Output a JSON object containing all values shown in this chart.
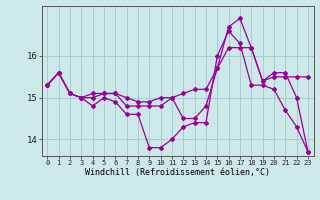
{
  "title": "",
  "xlabel": "Windchill (Refroidissement éolien,°C)",
  "ylabel": "",
  "background_color": "#cce8e8",
  "grid_color": "#aacccc",
  "line_color": "#990099",
  "ylim": [
    13.6,
    17.2
  ],
  "xlim": [
    -0.5,
    23.5
  ],
  "yticks": [
    14,
    15,
    16
  ],
  "xticks": [
    0,
    1,
    2,
    3,
    4,
    5,
    6,
    7,
    8,
    9,
    10,
    11,
    12,
    13,
    14,
    15,
    16,
    17,
    18,
    19,
    20,
    21,
    22,
    23
  ],
  "series": [
    [
      15.3,
      15.6,
      15.1,
      15.0,
      15.0,
      15.1,
      15.1,
      15.0,
      14.9,
      14.9,
      15.0,
      15.0,
      15.1,
      15.2,
      15.2,
      15.7,
      16.2,
      16.2,
      16.2,
      15.4,
      15.5,
      15.5,
      15.5,
      15.5
    ],
    [
      15.3,
      15.6,
      15.1,
      15.0,
      15.1,
      15.1,
      15.1,
      14.8,
      14.8,
      14.8,
      14.8,
      15.0,
      14.5,
      14.5,
      14.8,
      15.7,
      16.7,
      16.9,
      16.2,
      15.4,
      15.6,
      15.6,
      15.0,
      13.7
    ],
    [
      15.3,
      15.6,
      15.1,
      15.0,
      14.8,
      15.0,
      14.9,
      14.6,
      14.6,
      13.8,
      13.8,
      14.0,
      14.3,
      14.4,
      14.4,
      16.0,
      16.6,
      16.3,
      15.3,
      15.3,
      15.2,
      14.7,
      14.3,
      13.7
    ]
  ]
}
